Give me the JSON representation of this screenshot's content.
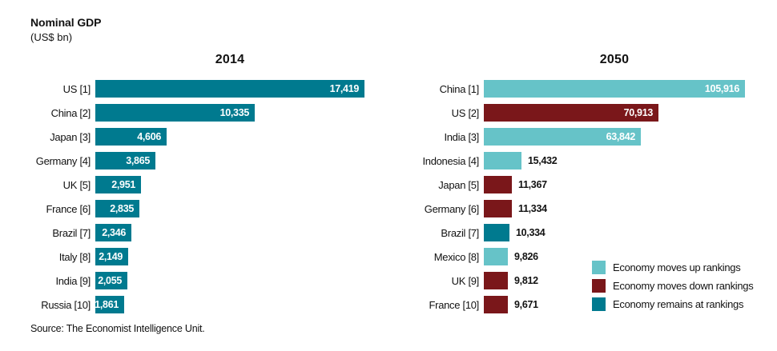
{
  "page": {
    "title": "Nominal GDP",
    "subtitle": "(US$ bn)",
    "source": "Source: The Economist Intelligence Unit."
  },
  "colors": {
    "up": "#66c3c8",
    "down": "#7a171a",
    "same": "#007a8f",
    "value_inside_text": "#ffffff",
    "value_outside_text": "#121212",
    "text": "#121212",
    "background": "#ffffff"
  },
  "legend": {
    "items": [
      {
        "key": "up",
        "label": "Economy moves up rankings"
      },
      {
        "key": "down",
        "label": "Economy moves down rankings"
      },
      {
        "key": "same",
        "label": "Economy remains at rankings"
      }
    ]
  },
  "chart_data": [
    {
      "type": "bar",
      "title": "2014",
      "orientation": "horizontal",
      "value_placement": "inside",
      "xlim": [
        0,
        17419
      ],
      "categories": [
        "US [1]",
        "China [2]",
        "Japan [3]",
        "Germany [4]",
        "UK [5]",
        "France [6]",
        "Brazil [7]",
        "Italy [8]",
        "India [9]",
        "Russia [10]"
      ],
      "values": [
        17419,
        10335,
        4606,
        3865,
        2951,
        2835,
        2346,
        2149,
        2055,
        1861
      ],
      "statuses": [
        "same",
        "same",
        "same",
        "same",
        "same",
        "same",
        "same",
        "same",
        "same",
        "same"
      ]
    },
    {
      "type": "bar",
      "title": "2050",
      "orientation": "horizontal",
      "value_placement": "auto",
      "xlim": [
        0,
        105916
      ],
      "categories": [
        "China [1]",
        "US [2]",
        "India [3]",
        "Indonesia [4]",
        "Japan [5]",
        "Germany [6]",
        "Brazil [7]",
        "Mexico [8]",
        "UK [9]",
        "France [10]"
      ],
      "values": [
        105916,
        70913,
        63842,
        15432,
        11367,
        11334,
        10334,
        9826,
        9812,
        9671
      ],
      "statuses": [
        "up",
        "down",
        "up",
        "up",
        "down",
        "down",
        "same",
        "up",
        "down",
        "down"
      ]
    }
  ]
}
